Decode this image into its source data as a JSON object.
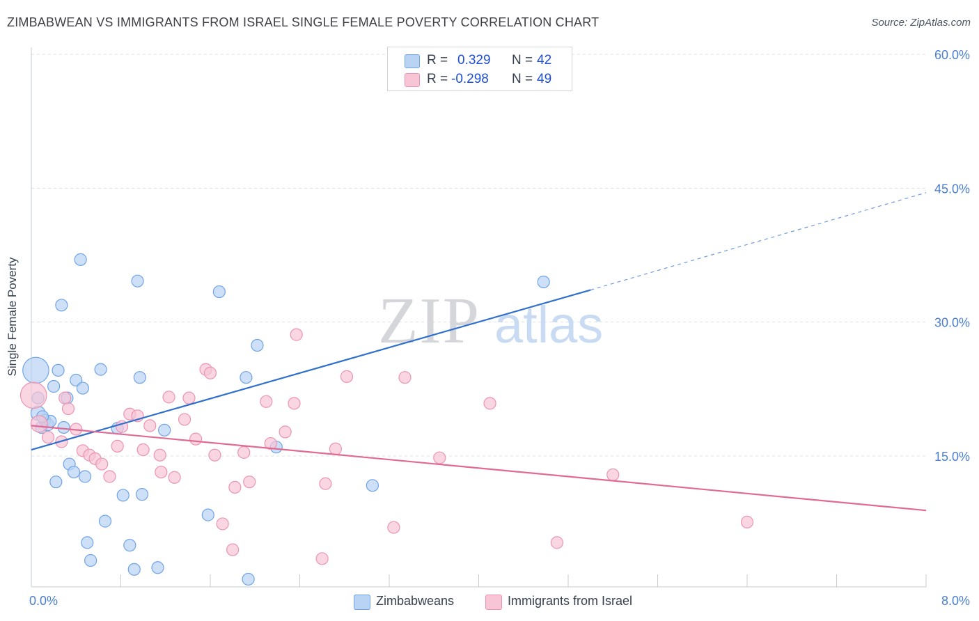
{
  "header": {
    "title": "ZIMBABWEAN VS IMMIGRANTS FROM ISRAEL SINGLE FEMALE POVERTY CORRELATION CHART",
    "source": "Source: ZipAtlas.com"
  },
  "watermark": {
    "zip": "ZIP",
    "atlas": "atlas"
  },
  "legend": {
    "series1": {
      "r_label": "R =",
      "r_value": "0.329",
      "n_label": "N =",
      "n_value": "42",
      "color": "#6fa3e8"
    },
    "series2": {
      "r_label": "R =",
      "r_value": "-0.298",
      "n_label": "N =",
      "n_value": "49",
      "color": "#f08fb0"
    }
  },
  "bottom_legend": {
    "item1": "Zimbabweans",
    "item2": "Immigrants from Israel"
  },
  "colors": {
    "blue_fill": "#b9d3f4",
    "blue_stroke": "#6fa3e8",
    "blue_line": "#2f6fce",
    "pink_fill": "#f7c5d6",
    "pink_stroke": "#ec93b3",
    "pink_line": "#e06a93",
    "axis_text": "#4a7fd0",
    "grid": "#dde1e6"
  },
  "chart_data": {
    "type": "scatter",
    "title": "ZIMBABWEAN VS IMMIGRANTS FROM ISRAEL SINGLE FEMALE POVERTY CORRELATION CHART",
    "xlabel": "",
    "ylabel": "Single Female Poverty",
    "xlim": [
      0,
      8
    ],
    "ylim": [
      0,
      65
    ],
    "x_tick_labels": [
      "0.0%",
      "8.0%"
    ],
    "y_ticks": [
      15,
      30,
      45,
      60
    ],
    "y_tick_labels": [
      "15.0%",
      "30.0%",
      "45.0%",
      "60.0%"
    ],
    "grid": true,
    "legend_placement": "top-center",
    "series": [
      {
        "name": "Zimbabweans",
        "r": 0.329,
        "n": 42,
        "trend": {
          "x": [
            0,
            5.0
          ],
          "y": [
            15.7,
            33.6
          ],
          "dashed_to": [
            8.0,
            44.5
          ]
        },
        "points": [
          {
            "x": 0.04,
            "y": 24.6,
            "s": 2.2
          },
          {
            "x": 0.06,
            "y": 19.8,
            "s": 1.2
          },
          {
            "x": 0.06,
            "y": 21.5,
            "s": 1.0
          },
          {
            "x": 0.09,
            "y": 18.2,
            "s": 1.0
          },
          {
            "x": 0.12,
            "y": 19.0,
            "s": 1.0
          },
          {
            "x": 0.15,
            "y": 18.5,
            "s": 1.0
          },
          {
            "x": 0.17,
            "y": 18.9,
            "s": 1.0
          },
          {
            "x": 0.2,
            "y": 22.8,
            "s": 1.0
          },
          {
            "x": 0.24,
            "y": 24.6,
            "s": 1.0
          },
          {
            "x": 0.27,
            "y": 31.9,
            "s": 1.0
          },
          {
            "x": 0.29,
            "y": 18.2,
            "s": 1.0
          },
          {
            "x": 0.32,
            "y": 21.5,
            "s": 1.0
          },
          {
            "x": 0.34,
            "y": 14.1,
            "s": 1.0
          },
          {
            "x": 0.38,
            "y": 13.2,
            "s": 1.0
          },
          {
            "x": 0.4,
            "y": 23.5,
            "s": 1.0
          },
          {
            "x": 0.44,
            "y": 37.0,
            "s": 1.0
          },
          {
            "x": 0.46,
            "y": 22.6,
            "s": 1.0
          },
          {
            "x": 0.48,
            "y": 12.7,
            "s": 1.0
          },
          {
            "x": 0.5,
            "y": 5.3,
            "s": 1.0
          },
          {
            "x": 0.53,
            "y": 3.3,
            "s": 1.0
          },
          {
            "x": 0.62,
            "y": 24.7,
            "s": 1.0
          },
          {
            "x": 0.66,
            "y": 7.7,
            "s": 1.0
          },
          {
            "x": 0.22,
            "y": 12.1,
            "s": 1.0
          },
          {
            "x": 0.77,
            "y": 18.1,
            "s": 1.0
          },
          {
            "x": 0.82,
            "y": 10.6,
            "s": 1.0
          },
          {
            "x": 0.88,
            "y": 5.0,
            "s": 1.0
          },
          {
            "x": 0.92,
            "y": 2.3,
            "s": 1.0
          },
          {
            "x": 0.95,
            "y": 34.6,
            "s": 1.0
          },
          {
            "x": 0.97,
            "y": 23.8,
            "s": 1.0
          },
          {
            "x": 0.99,
            "y": 10.7,
            "s": 1.0
          },
          {
            "x": 1.13,
            "y": 2.5,
            "s": 1.0
          },
          {
            "x": 1.19,
            "y": 17.9,
            "s": 1.0
          },
          {
            "x": 1.58,
            "y": 8.4,
            "s": 1.0
          },
          {
            "x": 1.68,
            "y": 33.4,
            "s": 1.0
          },
          {
            "x": 1.92,
            "y": 23.8,
            "s": 1.0
          },
          {
            "x": 1.94,
            "y": 1.2,
            "s": 1.0
          },
          {
            "x": 2.02,
            "y": 27.4,
            "s": 1.0
          },
          {
            "x": 2.19,
            "y": 16.0,
            "s": 1.0
          },
          {
            "x": 3.05,
            "y": 11.7,
            "s": 1.0
          },
          {
            "x": 4.2,
            "y": 59.8,
            "s": 1.0
          },
          {
            "x": 4.58,
            "y": 34.5,
            "s": 1.0
          },
          {
            "x": 0.1,
            "y": 19.4,
            "s": 1.0
          }
        ]
      },
      {
        "name": "Immigrants from Israel",
        "r": -0.298,
        "n": 49,
        "trend": {
          "x": [
            0,
            8.0
          ],
          "y": [
            18.4,
            8.9
          ]
        },
        "points": [
          {
            "x": 0.02,
            "y": 21.8,
            "s": 2.2
          },
          {
            "x": 0.07,
            "y": 18.6,
            "s": 1.4
          },
          {
            "x": 0.15,
            "y": 17.1,
            "s": 1.0
          },
          {
            "x": 0.27,
            "y": 16.6,
            "s": 1.0
          },
          {
            "x": 0.3,
            "y": 21.5,
            "s": 1.0
          },
          {
            "x": 0.33,
            "y": 20.3,
            "s": 1.0
          },
          {
            "x": 0.4,
            "y": 18.0,
            "s": 1.0
          },
          {
            "x": 0.46,
            "y": 15.6,
            "s": 1.0
          },
          {
            "x": 0.52,
            "y": 15.1,
            "s": 1.0
          },
          {
            "x": 0.57,
            "y": 14.7,
            "s": 1.0
          },
          {
            "x": 0.63,
            "y": 14.1,
            "s": 1.0
          },
          {
            "x": 0.7,
            "y": 12.7,
            "s": 1.0
          },
          {
            "x": 0.77,
            "y": 16.1,
            "s": 1.0
          },
          {
            "x": 0.81,
            "y": 18.3,
            "s": 1.0
          },
          {
            "x": 0.88,
            "y": 19.7,
            "s": 1.0
          },
          {
            "x": 0.95,
            "y": 19.5,
            "s": 1.0
          },
          {
            "x": 1.0,
            "y": 15.7,
            "s": 1.0
          },
          {
            "x": 1.06,
            "y": 18.4,
            "s": 1.0
          },
          {
            "x": 1.15,
            "y": 15.1,
            "s": 1.0
          },
          {
            "x": 1.16,
            "y": 13.2,
            "s": 1.0
          },
          {
            "x": 1.23,
            "y": 21.6,
            "s": 1.0
          },
          {
            "x": 1.28,
            "y": 12.6,
            "s": 1.0
          },
          {
            "x": 1.37,
            "y": 19.1,
            "s": 1.0
          },
          {
            "x": 1.41,
            "y": 21.5,
            "s": 1.0
          },
          {
            "x": 1.47,
            "y": 16.9,
            "s": 1.0
          },
          {
            "x": 1.56,
            "y": 24.7,
            "s": 1.0
          },
          {
            "x": 1.6,
            "y": 24.3,
            "s": 1.0
          },
          {
            "x": 1.64,
            "y": 15.1,
            "s": 1.0
          },
          {
            "x": 1.71,
            "y": 7.4,
            "s": 1.0
          },
          {
            "x": 1.8,
            "y": 4.5,
            "s": 1.0
          },
          {
            "x": 1.82,
            "y": 11.5,
            "s": 1.0
          },
          {
            "x": 1.9,
            "y": 15.4,
            "s": 1.0
          },
          {
            "x": 1.95,
            "y": 12.1,
            "s": 1.0
          },
          {
            "x": 2.1,
            "y": 21.1,
            "s": 1.0
          },
          {
            "x": 2.14,
            "y": 16.4,
            "s": 1.0
          },
          {
            "x": 2.27,
            "y": 17.7,
            "s": 1.0
          },
          {
            "x": 2.35,
            "y": 20.9,
            "s": 1.0
          },
          {
            "x": 2.37,
            "y": 28.6,
            "s": 1.0
          },
          {
            "x": 2.6,
            "y": 3.5,
            "s": 1.0
          },
          {
            "x": 2.63,
            "y": 11.9,
            "s": 1.0
          },
          {
            "x": 2.72,
            "y": 15.8,
            "s": 1.0
          },
          {
            "x": 2.82,
            "y": 23.9,
            "s": 1.0
          },
          {
            "x": 3.24,
            "y": 7.0,
            "s": 1.0
          },
          {
            "x": 3.34,
            "y": 23.8,
            "s": 1.0
          },
          {
            "x": 3.65,
            "y": 14.8,
            "s": 1.0
          },
          {
            "x": 4.1,
            "y": 20.9,
            "s": 1.0
          },
          {
            "x": 4.7,
            "y": 5.3,
            "s": 1.0
          },
          {
            "x": 5.2,
            "y": 12.9,
            "s": 1.0
          },
          {
            "x": 6.4,
            "y": 7.6,
            "s": 1.0
          }
        ]
      }
    ]
  }
}
